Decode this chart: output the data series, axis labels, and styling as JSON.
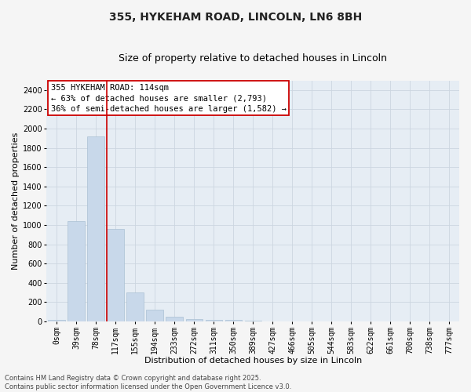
{
  "title": "355, HYKEHAM ROAD, LINCOLN, LN6 8BH",
  "subtitle": "Size of property relative to detached houses in Lincoln",
  "xlabel": "Distribution of detached houses by size in Lincoln",
  "ylabel": "Number of detached properties",
  "bar_color": "#c8d8ea",
  "bar_edge_color": "#aac0d4",
  "vline_color": "#cc0000",
  "vline_x_index": 3,
  "categories": [
    "0sqm",
    "39sqm",
    "78sqm",
    "117sqm",
    "155sqm",
    "194sqm",
    "233sqm",
    "272sqm",
    "311sqm",
    "350sqm",
    "389sqm",
    "427sqm",
    "466sqm",
    "505sqm",
    "544sqm",
    "583sqm",
    "622sqm",
    "661sqm",
    "700sqm",
    "738sqm",
    "777sqm"
  ],
  "values": [
    18,
    1040,
    1920,
    960,
    305,
    120,
    48,
    28,
    18,
    18,
    5,
    0,
    0,
    0,
    0,
    0,
    0,
    0,
    0,
    0,
    0
  ],
  "ylim": [
    0,
    2500
  ],
  "yticks": [
    0,
    200,
    400,
    600,
    800,
    1000,
    1200,
    1400,
    1600,
    1800,
    2000,
    2200,
    2400
  ],
  "annotation_line1": "355 HYKEHAM ROAD: 114sqm",
  "annotation_line2": "← 63% of detached houses are smaller (2,793)",
  "annotation_line3": "36% of semi-detached houses are larger (1,582) →",
  "annotation_box_facecolor": "#ffffff",
  "annotation_box_edgecolor": "#cc0000",
  "grid_color": "#ccd6e0",
  "plot_bg_color": "#e6edf4",
  "fig_bg_color": "#f5f5f5",
  "footer_line1": "Contains HM Land Registry data © Crown copyright and database right 2025.",
  "footer_line2": "Contains public sector information licensed under the Open Government Licence v3.0.",
  "title_fontsize": 10,
  "subtitle_fontsize": 9,
  "axis_label_fontsize": 8,
  "tick_fontsize": 7,
  "annotation_fontsize": 7.5,
  "footer_fontsize": 6,
  "ylabel_fontsize": 8
}
